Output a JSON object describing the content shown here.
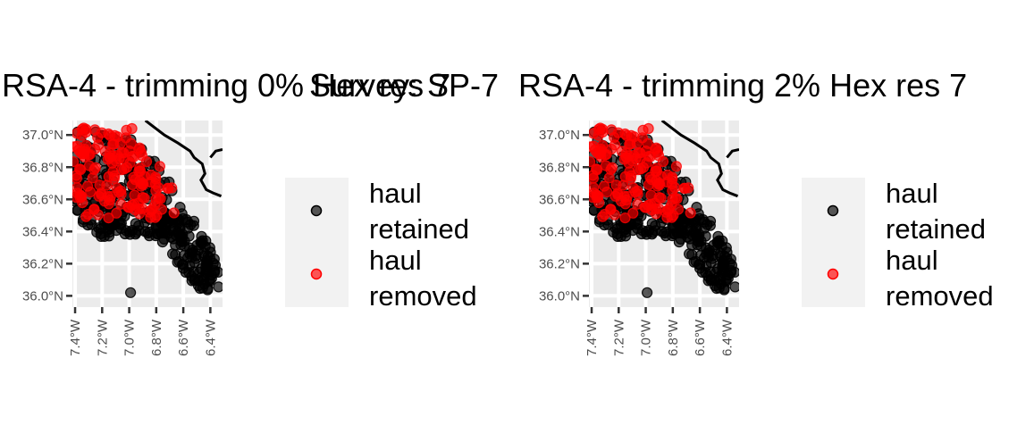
{
  "overall_title": "Survey: SP-7",
  "chart_data": [
    {
      "type": "scatter",
      "title": "RSA-4 - trimming 0% Hex res 7",
      "x_ticks": [
        "7.4°W",
        "7.2°W",
        "7.0°W",
        "6.8°W",
        "6.6°W",
        "6.4°W"
      ],
      "y_ticks": [
        "36.0°N",
        "36.2°N",
        "36.4°N",
        "36.6°N",
        "36.8°N",
        "37.0°N"
      ],
      "xlim": [
        -7.42,
        -6.31
      ],
      "ylim": [
        35.93,
        37.09
      ],
      "grid": true,
      "legend_position": "right",
      "series": [
        {
          "name": "haul\nretained",
          "color": "#000000"
        },
        {
          "name": "haul\nremoved",
          "color": "#ff0000"
        }
      ]
    },
    {
      "type": "scatter",
      "title": "RSA-4 - trimming 2% Hex res 7",
      "x_ticks": [
        "7.4°W",
        "7.2°W",
        "7.0°W",
        "6.8°W",
        "6.6°W",
        "6.4°W"
      ],
      "y_ticks": [
        "36.0°N",
        "36.2°N",
        "36.4°N",
        "36.6°N",
        "36.8°N",
        "37.0°N"
      ],
      "xlim": [
        -7.42,
        -6.31
      ],
      "ylim": [
        35.93,
        37.09
      ],
      "grid": true,
      "legend_position": "right",
      "series": [
        {
          "name": "haul\nretained",
          "color": "#000000"
        },
        {
          "name": "haul\nremoved",
          "color": "#ff0000"
        }
      ]
    }
  ],
  "colors": {
    "panel_background": "#ebebeb",
    "grid": "#ffffff",
    "coastline": "#000000",
    "legend_background": "#f2f2f2"
  }
}
